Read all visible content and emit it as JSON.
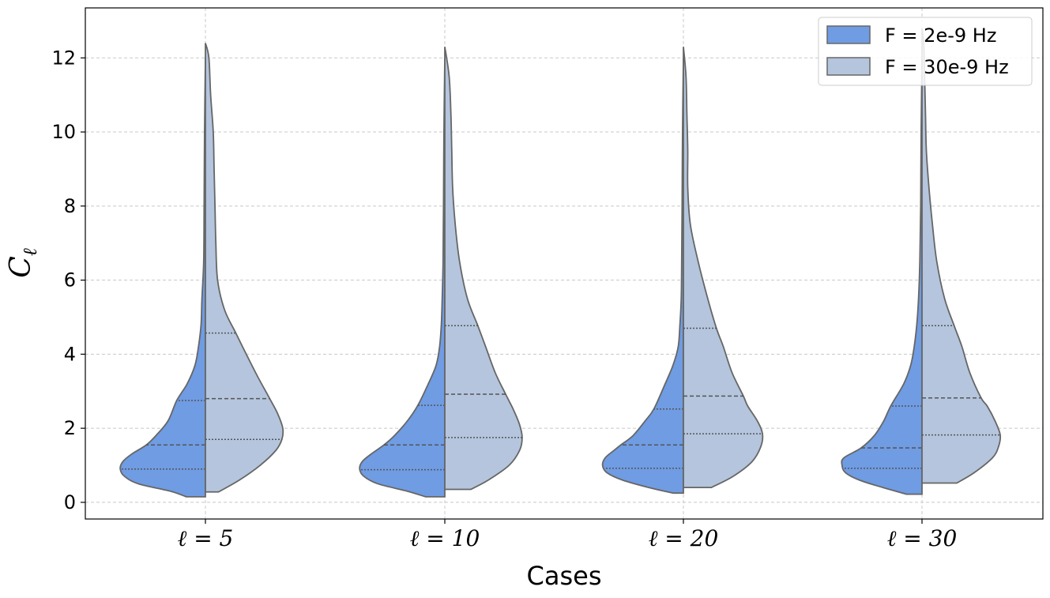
{
  "chart_data": {
    "type": "violin",
    "split": true,
    "title": "",
    "xlabel": "Cases",
    "ylabel": "C",
    "ylabel_subscript": "ℓ",
    "ylim": [
      -0.45,
      13.35
    ],
    "yticks": [
      0,
      2,
      4,
      6,
      8,
      10,
      12
    ],
    "grid": true,
    "legend_position": "top-right",
    "categories": [
      "ℓ = 5",
      "ℓ = 10",
      "ℓ = 20",
      "ℓ = 30"
    ],
    "series": [
      {
        "name": "F = 2e-9 Hz",
        "color": "#6f9ce3",
        "side": "left",
        "violins": [
          {
            "q1": 0.9,
            "median": 1.55,
            "q3": 2.75,
            "min": 0.15,
            "max": 12.0,
            "profile": [
              [
                0.15,
                0.22
              ],
              [
                0.3,
                0.4
              ],
              [
                0.5,
                0.77
              ],
              [
                0.7,
                0.93
              ],
              [
                0.9,
                0.98
              ],
              [
                1.1,
                0.95
              ],
              [
                1.3,
                0.85
              ],
              [
                1.55,
                0.68
              ],
              [
                1.8,
                0.57
              ],
              [
                2.2,
                0.43
              ],
              [
                2.75,
                0.33
              ],
              [
                3.2,
                0.21
              ],
              [
                3.7,
                0.12
              ],
              [
                4.2,
                0.08
              ],
              [
                4.8,
                0.05
              ],
              [
                5.5,
                0.04
              ],
              [
                6.5,
                0.02
              ],
              [
                8.0,
                0.015
              ],
              [
                10,
                0.01
              ],
              [
                12.0,
                0.0
              ]
            ]
          },
          {
            "q1": 0.88,
            "median": 1.55,
            "q3": 2.62,
            "min": 0.15,
            "max": 12.0,
            "profile": [
              [
                0.15,
                0.22
              ],
              [
                0.3,
                0.43
              ],
              [
                0.5,
                0.77
              ],
              [
                0.7,
                0.93
              ],
              [
                0.9,
                0.98
              ],
              [
                1.1,
                0.95
              ],
              [
                1.3,
                0.85
              ],
              [
                1.55,
                0.7
              ],
              [
                1.8,
                0.58
              ],
              [
                2.2,
                0.43
              ],
              [
                2.62,
                0.31
              ],
              [
                3.2,
                0.19
              ],
              [
                3.7,
                0.1
              ],
              [
                4.2,
                0.06
              ],
              [
                4.8,
                0.04
              ],
              [
                5.5,
                0.03
              ],
              [
                6.5,
                0.02
              ],
              [
                8.0,
                0.015
              ],
              [
                10,
                0.01
              ],
              [
                12.0,
                0.0
              ]
            ]
          },
          {
            "q1": 0.92,
            "median": 1.55,
            "q3": 2.52,
            "min": 0.25,
            "max": 12.0,
            "profile": [
              [
                0.25,
                0.12
              ],
              [
                0.4,
                0.4
              ],
              [
                0.6,
                0.7
              ],
              [
                0.8,
                0.88
              ],
              [
                1.0,
                0.93
              ],
              [
                1.2,
                0.9
              ],
              [
                1.4,
                0.8
              ],
              [
                1.55,
                0.72
              ],
              [
                1.8,
                0.58
              ],
              [
                2.2,
                0.44
              ],
              [
                2.52,
                0.34
              ],
              [
                3.2,
                0.21
              ],
              [
                3.7,
                0.12
              ],
              [
                4.2,
                0.06
              ],
              [
                4.8,
                0.04
              ],
              [
                5.5,
                0.025
              ],
              [
                6.5,
                0.02
              ],
              [
                8.0,
                0.015
              ],
              [
                10,
                0.01
              ],
              [
                12.0,
                0.0
              ]
            ]
          },
          {
            "q1": 0.92,
            "median": 1.47,
            "q3": 2.6,
            "min": 0.22,
            "max": 12.0,
            "profile": [
              [
                0.22,
                0.18
              ],
              [
                0.4,
                0.45
              ],
              [
                0.6,
                0.72
              ],
              [
                0.8,
                0.88
              ],
              [
                1.0,
                0.92
              ],
              [
                1.2,
                0.9
              ],
              [
                1.47,
                0.7
              ],
              [
                1.8,
                0.55
              ],
              [
                2.2,
                0.44
              ],
              [
                2.6,
                0.36
              ],
              [
                3.2,
                0.21
              ],
              [
                3.7,
                0.13
              ],
              [
                4.2,
                0.09
              ],
              [
                4.8,
                0.06
              ],
              [
                5.5,
                0.04
              ],
              [
                6.5,
                0.025
              ],
              [
                8.0,
                0.015
              ],
              [
                10,
                0.01
              ],
              [
                12.0,
                0.0
              ]
            ]
          }
        ]
      },
      {
        "name": "F = 30e-9 Hz",
        "color": "#b4c5dd",
        "side": "right",
        "violins": [
          {
            "q1": 1.7,
            "median": 2.8,
            "q3": 4.57,
            "min": 0.28,
            "max": 12.4,
            "profile": [
              [
                0.28,
                0.15
              ],
              [
                0.6,
                0.39
              ],
              [
                1.0,
                0.63
              ],
              [
                1.4,
                0.81
              ],
              [
                1.7,
                0.88
              ],
              [
                2.0,
                0.89
              ],
              [
                2.4,
                0.83
              ],
              [
                2.8,
                0.74
              ],
              [
                3.4,
                0.6
              ],
              [
                4.0,
                0.47
              ],
              [
                4.57,
                0.35
              ],
              [
                5.2,
                0.22
              ],
              [
                6.0,
                0.14
              ],
              [
                7.0,
                0.12
              ],
              [
                8.0,
                0.11
              ],
              [
                9.0,
                0.1
              ],
              [
                10.0,
                0.09
              ],
              [
                11.0,
                0.06
              ],
              [
                12.0,
                0.04
              ],
              [
                12.4,
                0.0
              ]
            ]
          },
          {
            "q1": 1.75,
            "median": 2.92,
            "q3": 4.77,
            "min": 0.35,
            "max": 12.3,
            "profile": [
              [
                0.35,
                0.3
              ],
              [
                0.6,
                0.5
              ],
              [
                1.0,
                0.74
              ],
              [
                1.4,
                0.86
              ],
              [
                1.75,
                0.89
              ],
              [
                2.1,
                0.86
              ],
              [
                2.5,
                0.79
              ],
              [
                2.92,
                0.7
              ],
              [
                3.5,
                0.58
              ],
              [
                4.2,
                0.47
              ],
              [
                4.77,
                0.38
              ],
              [
                5.5,
                0.26
              ],
              [
                6.5,
                0.17
              ],
              [
                7.5,
                0.12
              ],
              [
                8.5,
                0.09
              ],
              [
                9.5,
                0.08
              ],
              [
                10.5,
                0.07
              ],
              [
                11.5,
                0.05
              ],
              [
                12.3,
                0.0
              ]
            ]
          },
          {
            "q1": 1.85,
            "median": 2.87,
            "q3": 4.7,
            "min": 0.4,
            "max": 12.3,
            "profile": [
              [
                0.4,
                0.32
              ],
              [
                0.7,
                0.57
              ],
              [
                1.1,
                0.79
              ],
              [
                1.5,
                0.89
              ],
              [
                1.85,
                0.91
              ],
              [
                2.2,
                0.85
              ],
              [
                2.6,
                0.74
              ],
              [
                2.87,
                0.69
              ],
              [
                3.5,
                0.56
              ],
              [
                4.2,
                0.46
              ],
              [
                4.7,
                0.38
              ],
              [
                5.5,
                0.28
              ],
              [
                6.5,
                0.17
              ],
              [
                7.5,
                0.08
              ],
              [
                8.5,
                0.05
              ],
              [
                9.5,
                0.05
              ],
              [
                10.5,
                0.04
              ],
              [
                11.5,
                0.03
              ],
              [
                12.3,
                0.0
              ]
            ]
          },
          {
            "q1": 1.82,
            "median": 2.82,
            "q3": 4.77,
            "min": 0.52,
            "max": 12.8,
            "profile": [
              [
                0.52,
                0.4
              ],
              [
                0.8,
                0.6
              ],
              [
                1.2,
                0.81
              ],
              [
                1.5,
                0.88
              ],
              [
                1.82,
                0.9
              ],
              [
                2.2,
                0.84
              ],
              [
                2.6,
                0.75
              ],
              [
                2.82,
                0.68
              ],
              [
                3.5,
                0.55
              ],
              [
                4.2,
                0.46
              ],
              [
                4.77,
                0.37
              ],
              [
                5.5,
                0.26
              ],
              [
                6.5,
                0.17
              ],
              [
                7.5,
                0.12
              ],
              [
                8.5,
                0.08
              ],
              [
                9.5,
                0.05
              ],
              [
                10.5,
                0.04
              ],
              [
                11.5,
                0.03
              ],
              [
                12.4,
                0.02
              ],
              [
                12.8,
                0.0
              ]
            ]
          }
        ]
      }
    ]
  }
}
